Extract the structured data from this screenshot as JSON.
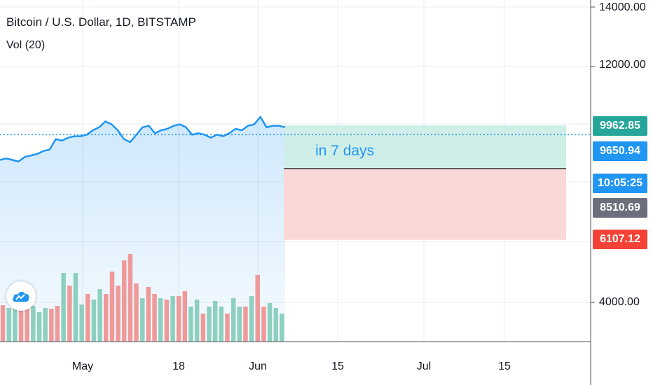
{
  "header": {
    "title": "Bitcoin / U.S. Dollar, 1D, BITSTAMP",
    "volume_indicator": "Vol (20)"
  },
  "logo": {
    "icon": "cloud-chart-logo-icon"
  },
  "price_axis": {
    "labels": [
      "14000.00",
      "12000.00",
      "4000.00"
    ],
    "badges": {
      "target_high": "9962.85",
      "current_price": "9650.94",
      "countdown": "10:05:25",
      "level_mid": "8510.69",
      "target_low": "6107.12"
    }
  },
  "time_axis": {
    "labels": [
      "May",
      "18",
      "Jun",
      "15",
      "Jul",
      "15"
    ]
  },
  "forecast": {
    "label": "in 7 days",
    "upper_zone_color": "#cfeee8",
    "lower_zone_color": "#fbd7d7"
  },
  "colors": {
    "line": "#2196f3",
    "up_volume": "#8dd0c0",
    "down_volume": "#ef9a9a",
    "badge_green": "#26a69a",
    "badge_blue": "#2196f3",
    "badge_grey": "#6b6f7b",
    "badge_red": "#f44336"
  },
  "chart_data": {
    "type": "line",
    "symbol": "BTCUSD",
    "price_series": [
      8800,
      8850,
      8800,
      8750,
      8900,
      8950,
      9000,
      9100,
      9150,
      9500,
      9450,
      9550,
      9600,
      9600,
      9650,
      9800,
      9900,
      10100,
      10000,
      9800,
      9500,
      9400,
      9650,
      9900,
      9950,
      9700,
      9800,
      9850,
      9950,
      10000,
      9900,
      9650,
      9700,
      9650,
      9550,
      9650,
      9600,
      9700,
      9850,
      9800,
      9950,
      10000,
      10250,
      9900,
      9950,
      9950,
      9900
    ],
    "volume_series": [
      {
        "v": 22,
        "up": false
      },
      {
        "v": 18,
        "up": true
      },
      {
        "v": 20,
        "up": true
      },
      {
        "v": 22,
        "up": false
      },
      {
        "v": 23,
        "up": false
      },
      {
        "v": 21,
        "up": true
      },
      {
        "v": 12,
        "up": true
      },
      {
        "v": 18,
        "up": true
      },
      {
        "v": 17,
        "up": false
      },
      {
        "v": 21,
        "up": false
      },
      {
        "v": 68,
        "up": true
      },
      {
        "v": 50,
        "up": false
      },
      {
        "v": 68,
        "up": true
      },
      {
        "v": 23,
        "up": true
      },
      {
        "v": 38,
        "up": false
      },
      {
        "v": 30,
        "up": true
      },
      {
        "v": 45,
        "up": true
      },
      {
        "v": 38,
        "up": false
      },
      {
        "v": 70,
        "up": false
      },
      {
        "v": 50,
        "up": false
      },
      {
        "v": 86,
        "up": false
      },
      {
        "v": 95,
        "up": false
      },
      {
        "v": 53,
        "up": false
      },
      {
        "v": 32,
        "up": true
      },
      {
        "v": 48,
        "up": false
      },
      {
        "v": 38,
        "up": false
      },
      {
        "v": 32,
        "up": true
      },
      {
        "v": 30,
        "up": false
      },
      {
        "v": 35,
        "up": true
      },
      {
        "v": 35,
        "up": false
      },
      {
        "v": 42,
        "up": false
      },
      {
        "v": 20,
        "up": true
      },
      {
        "v": 30,
        "up": true
      },
      {
        "v": 10,
        "up": false
      },
      {
        "v": 20,
        "up": true
      },
      {
        "v": 28,
        "up": true
      },
      {
        "v": 20,
        "up": true
      },
      {
        "v": 10,
        "up": false
      },
      {
        "v": 32,
        "up": true
      },
      {
        "v": 20,
        "up": true
      },
      {
        "v": 20,
        "up": false
      },
      {
        "v": 35,
        "up": true
      },
      {
        "v": 65,
        "up": false
      },
      {
        "v": 20,
        "up": false
      },
      {
        "v": 25,
        "up": true
      },
      {
        "v": 18,
        "up": true
      },
      {
        "v": 10,
        "up": true
      }
    ],
    "current_price": 9650.94,
    "forecast": {
      "horizon_days": 7,
      "upper": 9962.85,
      "mid": 8510.69,
      "lower": 6107.12
    },
    "y_axis_ticks": [
      14000,
      12000,
      4000
    ],
    "x_axis_ticks": [
      "May",
      "18",
      "Jun",
      "15",
      "Jul",
      "15"
    ],
    "grid": true
  }
}
